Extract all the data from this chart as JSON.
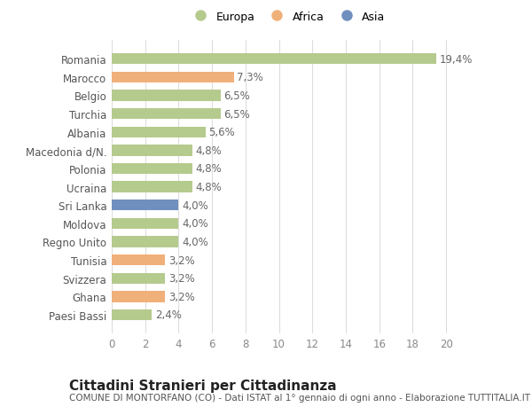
{
  "categories": [
    "Paesi Bassi",
    "Ghana",
    "Svizzera",
    "Tunisia",
    "Regno Unito",
    "Moldova",
    "Sri Lanka",
    "Ucraina",
    "Polonia",
    "Macedonia d/N.",
    "Albania",
    "Turchia",
    "Belgio",
    "Marocco",
    "Romania"
  ],
  "values": [
    2.4,
    3.2,
    3.2,
    3.2,
    4.0,
    4.0,
    4.0,
    4.8,
    4.8,
    4.8,
    5.6,
    6.5,
    6.5,
    7.3,
    19.4
  ],
  "labels": [
    "2,4%",
    "3,2%",
    "3,2%",
    "3,2%",
    "4,0%",
    "4,0%",
    "4,0%",
    "4,8%",
    "4,8%",
    "4,8%",
    "5,6%",
    "6,5%",
    "6,5%",
    "7,3%",
    "19,4%"
  ],
  "colors": [
    "#b5ca8d",
    "#f0b07a",
    "#b5ca8d",
    "#f0b07a",
    "#b5ca8d",
    "#b5ca8d",
    "#6f8fbe",
    "#b5ca8d",
    "#b5ca8d",
    "#b5ca8d",
    "#b5ca8d",
    "#b5ca8d",
    "#b5ca8d",
    "#f0b07a",
    "#b5ca8d"
  ],
  "legend_labels": [
    "Europa",
    "Africa",
    "Asia"
  ],
  "legend_colors": [
    "#b5ca8d",
    "#f0b07a",
    "#6f8fbe"
  ],
  "title": "Cittadini Stranieri per Cittadinanza",
  "subtitle": "COMUNE DI MONTORFANO (CO) - Dati ISTAT al 1° gennaio di ogni anno - Elaborazione TUTTITALIA.IT",
  "xlim": [
    0,
    21
  ],
  "xticks": [
    0,
    2,
    4,
    6,
    8,
    10,
    12,
    14,
    16,
    18,
    20
  ],
  "background_color": "#ffffff",
  "bar_background": "#ffffff",
  "grid_color": "#dddddd",
  "label_fontsize": 8.5,
  "tick_fontsize": 8.5,
  "title_fontsize": 11,
  "subtitle_fontsize": 7.5
}
